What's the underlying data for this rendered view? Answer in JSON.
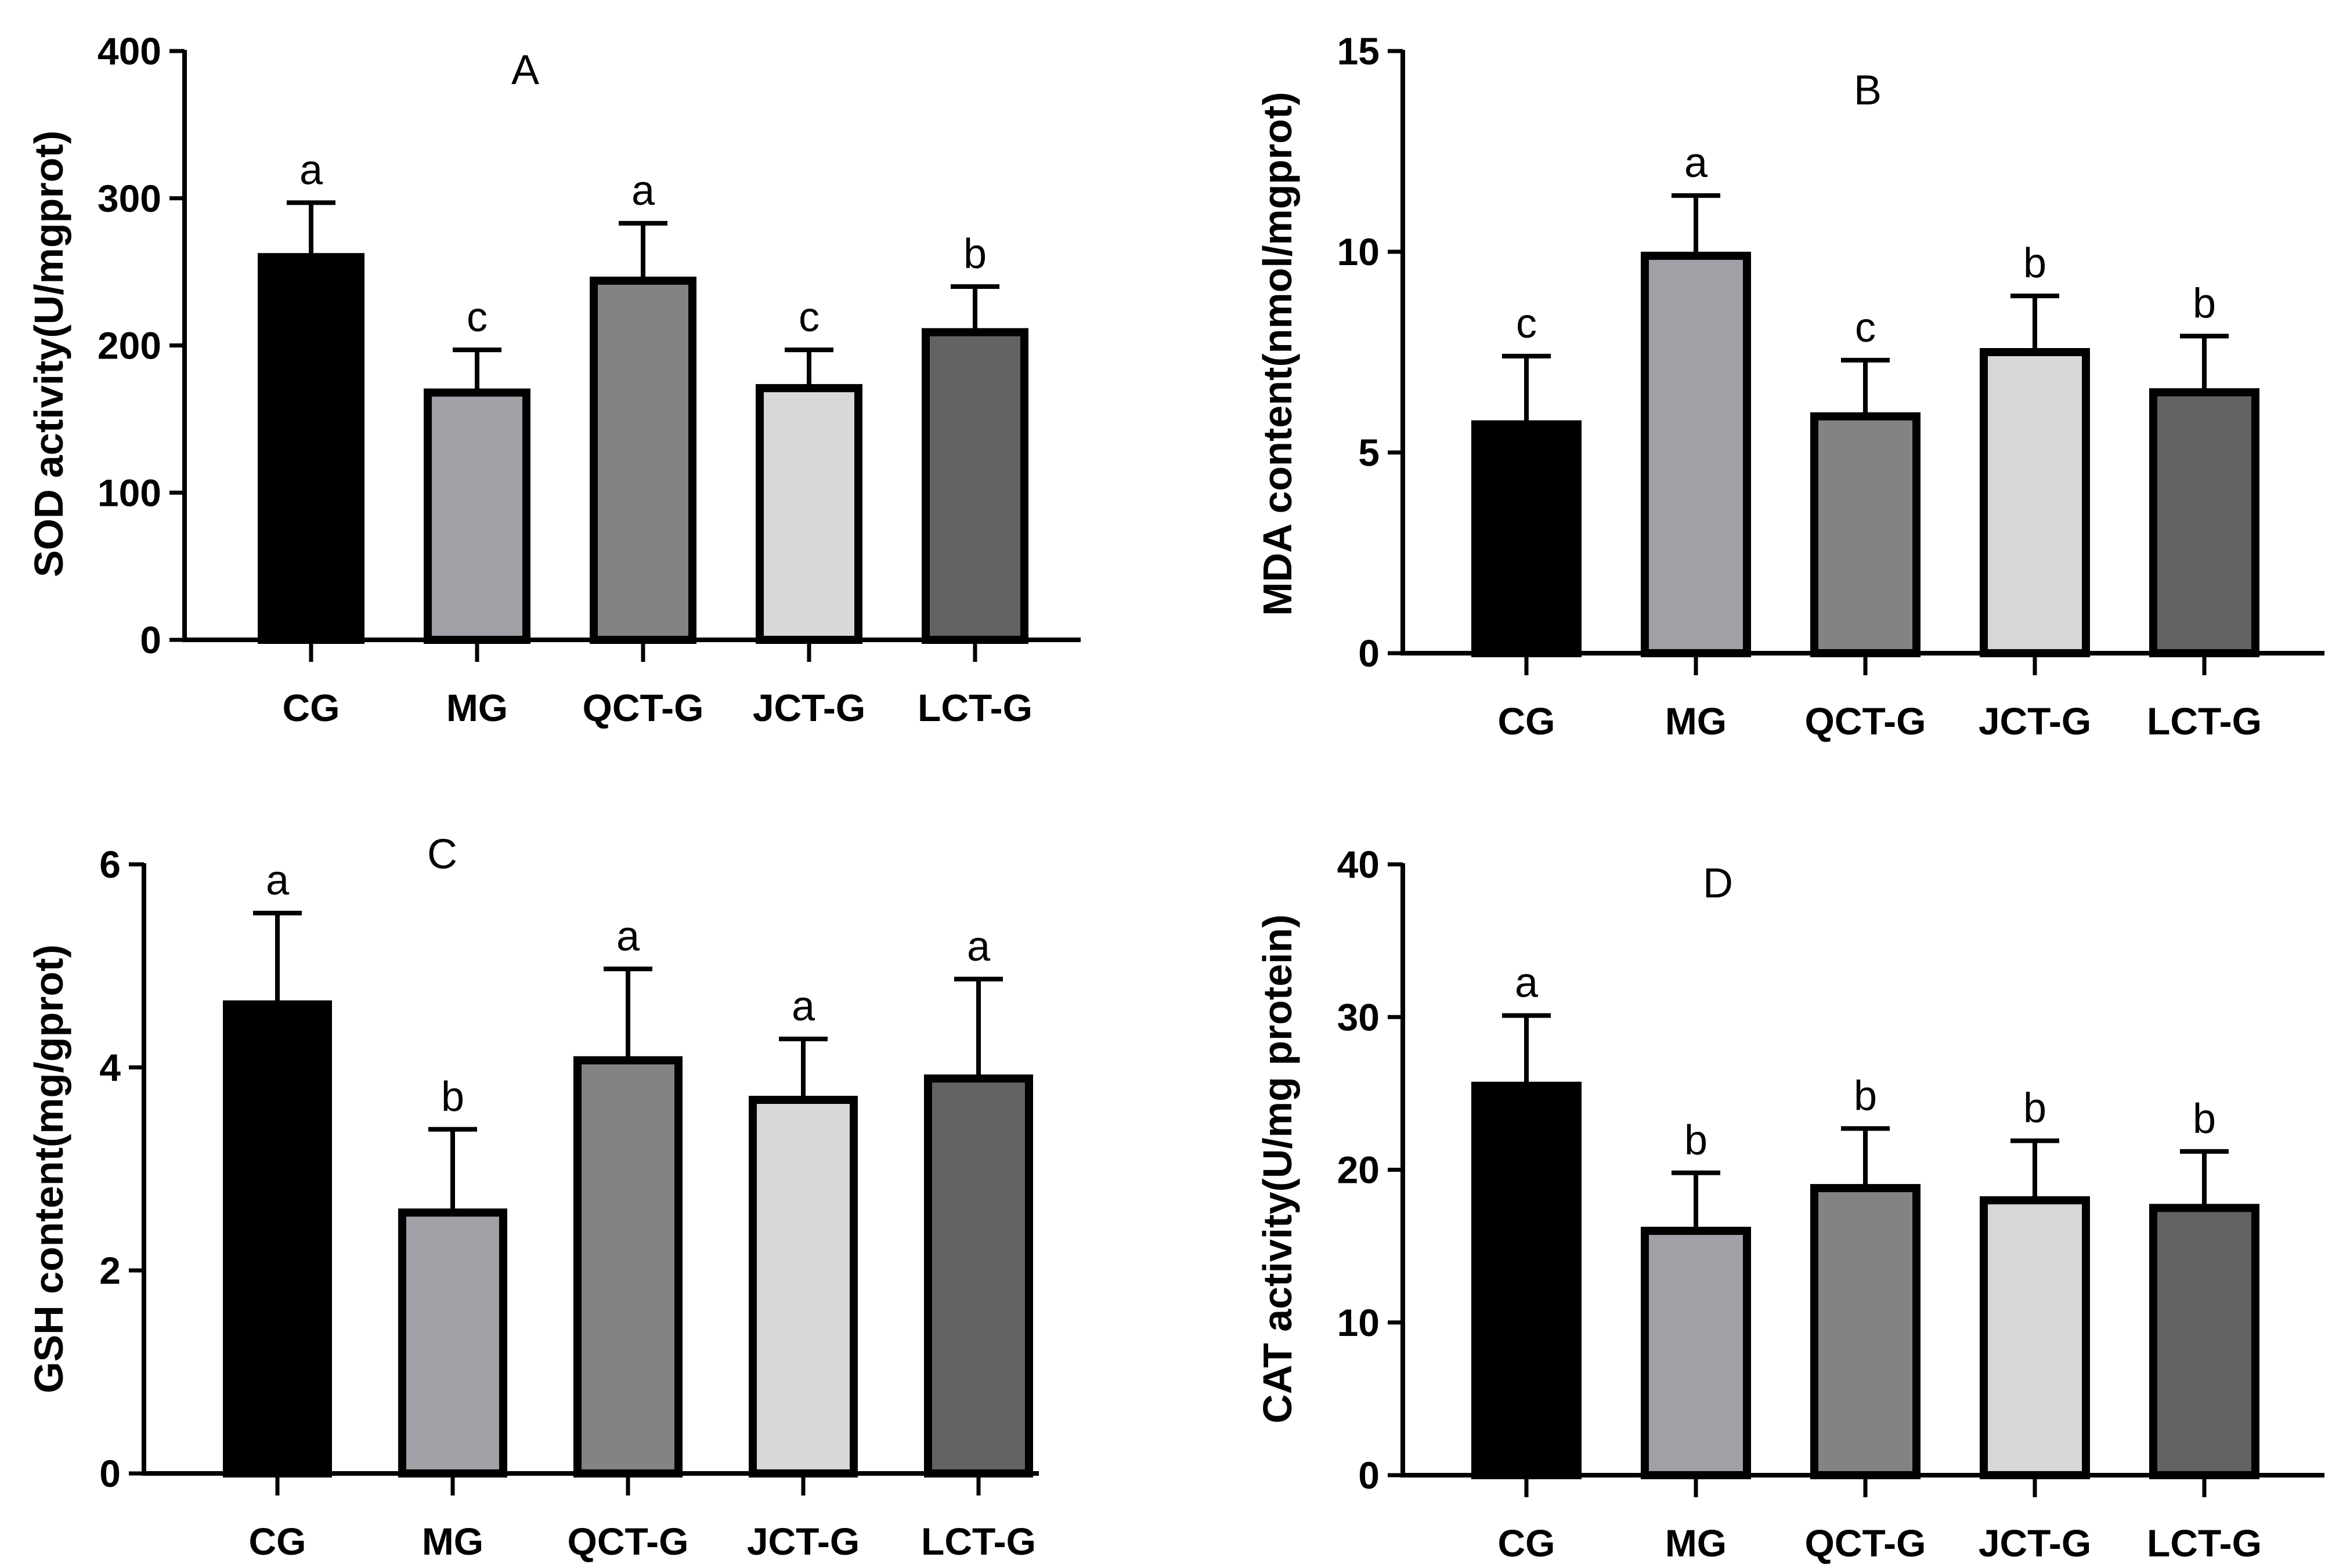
{
  "chart_data": [
    {
      "type": "bar",
      "panel": "A",
      "title": "A",
      "xlabel": "",
      "ylabel": "SOD activity(U/mgprot)",
      "ylim": [
        0,
        400
      ],
      "yticks": [
        0,
        100,
        200,
        300,
        400
      ],
      "categories": [
        "CG",
        "MG",
        "QCT-G",
        "JCT-G",
        "LCT-G"
      ],
      "values": [
        260,
        168,
        244,
        171,
        209
      ],
      "errors": [
        37,
        29,
        39,
        26,
        31
      ],
      "significance": [
        "a",
        "c",
        "a",
        "c",
        "b"
      ],
      "colors": [
        "#000000",
        "#a0a0a6",
        "#838383",
        "#d8d8d8",
        "#636363"
      ],
      "grid": false,
      "legend": "none"
    },
    {
      "type": "bar",
      "panel": "B",
      "title": "B",
      "xlabel": "",
      "ylabel": "MDA content(nmol/mgprot)",
      "ylim": [
        0,
        15
      ],
      "yticks": [
        0,
        5,
        10,
        15
      ],
      "categories": [
        "CG",
        "MG",
        "QCT-G",
        "JCT-G",
        "LCT-G"
      ],
      "values": [
        5.7,
        9.9,
        5.9,
        7.5,
        6.5
      ],
      "errors": [
        1.7,
        1.5,
        1.4,
        1.4,
        1.4
      ],
      "significance": [
        "c",
        "a",
        "c",
        "b",
        "b"
      ],
      "colors": [
        "#000000",
        "#a0a0a6",
        "#838383",
        "#d8d8d8",
        "#636363"
      ],
      "grid": false,
      "legend": "none"
    },
    {
      "type": "bar",
      "panel": "C",
      "title": "C",
      "xlabel": "",
      "ylabel": "GSH content(mg/gprot)",
      "ylim": [
        0,
        6
      ],
      "yticks": [
        0,
        2,
        4,
        6
      ],
      "categories": [
        "CG",
        "MG",
        "QCT-G",
        "JCT-G",
        "LCT-G"
      ],
      "values": [
        4.62,
        2.57,
        4.07,
        3.68,
        3.89
      ],
      "errors": [
        0.9,
        0.82,
        0.9,
        0.6,
        0.98
      ],
      "significance": [
        "a",
        "b",
        "a",
        "a",
        "a"
      ],
      "colors": [
        "#000000",
        "#a0a0a6",
        "#838383",
        "#d8d8d8",
        "#636363"
      ],
      "grid": false,
      "legend": "none"
    },
    {
      "type": "bar",
      "panel": "D",
      "title": "D",
      "xlabel": "",
      "ylabel": "CAT activity(U/mg protein)",
      "ylim": [
        0,
        40
      ],
      "yticks": [
        0,
        10,
        20,
        30,
        40
      ],
      "categories": [
        "CG",
        "MG",
        "QCT-G",
        "JCT-G",
        "LCT-G"
      ],
      "values": [
        25.5,
        16,
        18.8,
        18,
        17.5
      ],
      "errors": [
        4.6,
        3.8,
        3.9,
        3.9,
        3.7
      ],
      "significance": [
        "a",
        "b",
        "b",
        "b",
        "b"
      ],
      "colors": [
        "#000000",
        "#a0a0a6",
        "#838383",
        "#d8d8d8",
        "#636363"
      ],
      "grid": false,
      "legend": "none"
    }
  ]
}
